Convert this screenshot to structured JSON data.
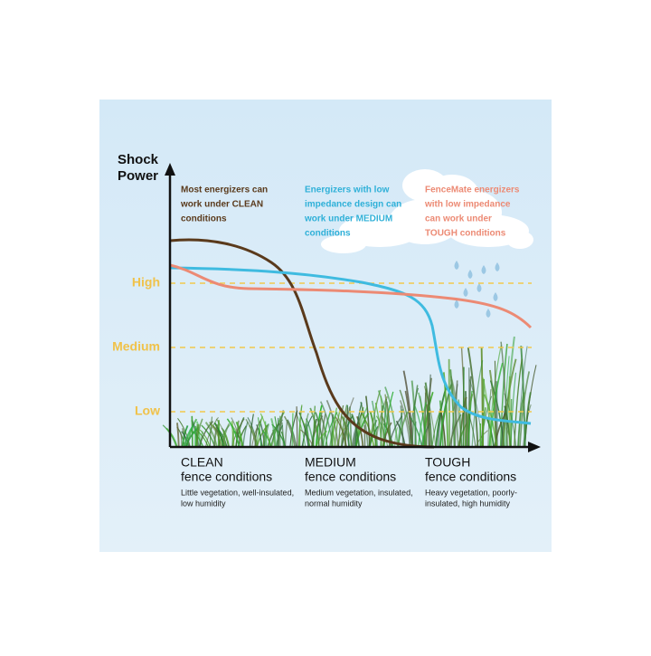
{
  "axis": {
    "title_lines": [
      "Shock",
      "Power"
    ],
    "levels": [
      "High",
      "Medium",
      "Low"
    ]
  },
  "annotations": [
    [
      "Most energizers can",
      "work under CLEAN",
      "conditions"
    ],
    [
      "Energizers with low",
      "impedance design can",
      "work under MEDIUM",
      "conditions"
    ],
    [
      "FenceMate energizers",
      "with low impedance",
      "can work under",
      "TOUGH conditions"
    ]
  ],
  "conditions": [
    {
      "title": "CLEAN",
      "subtitle": "fence conditions",
      "details": [
        "Little vegetation, well-insulated,",
        "low humidity"
      ]
    },
    {
      "title": "MEDIUM",
      "subtitle": "fence conditions",
      "details": [
        "Medium vegetation, insulated,",
        "normal humidity"
      ]
    },
    {
      "title": "TOUGH",
      "subtitle": "fence conditions",
      "details": [
        "Heavy vegetation, poorly-",
        "insulated, high humidity"
      ]
    }
  ]
}
